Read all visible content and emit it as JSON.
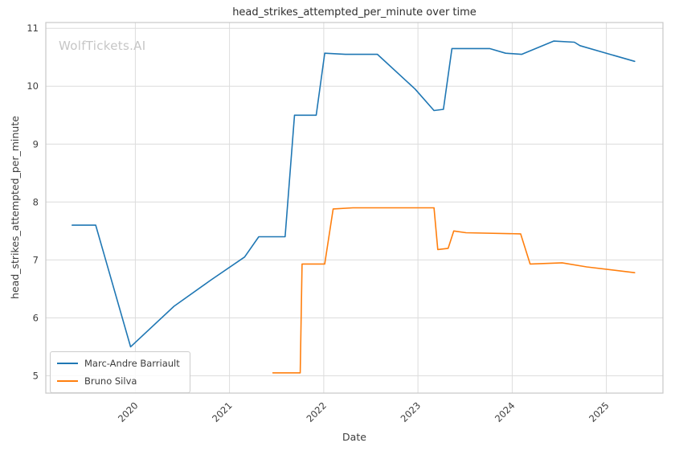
{
  "watermark": "WolfTickets.AI",
  "chart_data": {
    "type": "line",
    "title": "head_strikes_attempted_per_minute over time",
    "xlabel": "Date",
    "ylabel": "head_strikes_attempted_per_minute",
    "xlim": [
      2019.05,
      2025.6
    ],
    "ylim": [
      4.7,
      11.1
    ],
    "xticks": [
      2020,
      2021,
      2022,
      2023,
      2024,
      2025
    ],
    "yticks": [
      5,
      6,
      7,
      8,
      9,
      10,
      11
    ],
    "grid": true,
    "legend_position": "lower left",
    "colors": {
      "background": "#ffffff",
      "grid": "#dcdcdc",
      "spine": "#c7c7c7",
      "tick_label": "#3d3d3d",
      "title": "#2e2e2e",
      "watermark": "#c6c6c6"
    },
    "series": [
      {
        "name": "Marc-Andre Barriault",
        "color": "#1f77b4",
        "x": [
          2019.33,
          2019.58,
          2019.95,
          2020.41,
          2020.8,
          2021.16,
          2021.31,
          2021.59,
          2021.69,
          2021.92,
          2022.01,
          2022.23,
          2022.57,
          2022.97,
          2023.17,
          2023.27,
          2023.36,
          2023.76,
          2023.93,
          2024.1,
          2024.44,
          2024.66,
          2024.72,
          2025.04,
          2025.3
        ],
        "y": [
          7.6,
          7.6,
          5.5,
          6.2,
          6.65,
          7.05,
          7.4,
          7.4,
          9.5,
          9.5,
          10.57,
          10.55,
          10.55,
          9.95,
          9.58,
          9.6,
          10.65,
          10.65,
          10.57,
          10.55,
          10.78,
          10.76,
          10.7,
          10.55,
          10.43
        ]
      },
      {
        "name": "Bruno Silva",
        "color": "#ff7f0e",
        "x": [
          2021.46,
          2021.75,
          2021.77,
          2022.01,
          2022.1,
          2022.31,
          2023.17,
          2023.21,
          2023.32,
          2023.38,
          2023.51,
          2024.09,
          2024.19,
          2024.53,
          2024.79,
          2025.3
        ],
        "y": [
          5.05,
          5.05,
          6.93,
          6.93,
          7.88,
          7.9,
          7.9,
          7.18,
          7.2,
          7.5,
          7.47,
          7.45,
          6.93,
          6.95,
          6.88,
          6.78
        ]
      }
    ]
  }
}
